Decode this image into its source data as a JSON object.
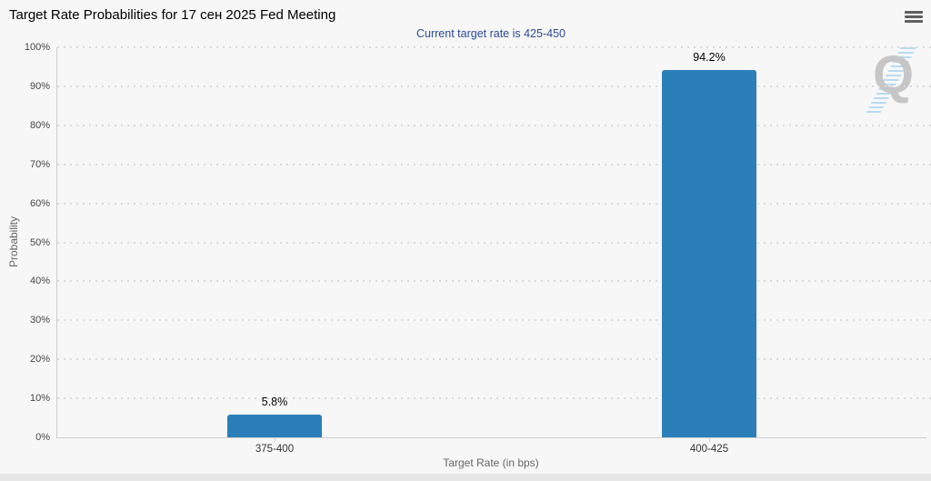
{
  "header": {
    "menu_icon": "hamburger-menu-icon"
  },
  "colors": {
    "bar": "#2a7fb8",
    "subtitle_text": "#2b4a9e",
    "card_background": "#f7f7f7",
    "watermark_gray": "#c6c6c6",
    "watermark_blue": "#b7dbf3"
  },
  "chart_data": {
    "type": "bar",
    "title": "Target Rate Probabilities for 17 сен 2025 Fed Meeting",
    "subtitle": "Current target rate is 425-450",
    "categories": [
      "375-400",
      "400-425"
    ],
    "values": [
      5.8,
      94.2
    ],
    "value_labels": [
      "5.8%",
      "94.2%"
    ],
    "xlabel": "Target Rate (in bps)",
    "ylabel": "Probability",
    "ylim": [
      0,
      100
    ],
    "yticks": [
      {
        "value": 0,
        "label": "0%"
      },
      {
        "value": 10,
        "label": "10%"
      },
      {
        "value": 20,
        "label": "20%"
      },
      {
        "value": 30,
        "label": "30%"
      },
      {
        "value": 40,
        "label": "40%"
      },
      {
        "value": 50,
        "label": "50%"
      },
      {
        "value": 60,
        "label": "60%"
      },
      {
        "value": 70,
        "label": "70%"
      },
      {
        "value": 80,
        "label": "80%"
      },
      {
        "value": 90,
        "label": "90%"
      },
      {
        "value": 100,
        "label": "100%"
      }
    ],
    "grid": "dotted horizontal",
    "legend": "none",
    "watermark_letter": "Q"
  }
}
